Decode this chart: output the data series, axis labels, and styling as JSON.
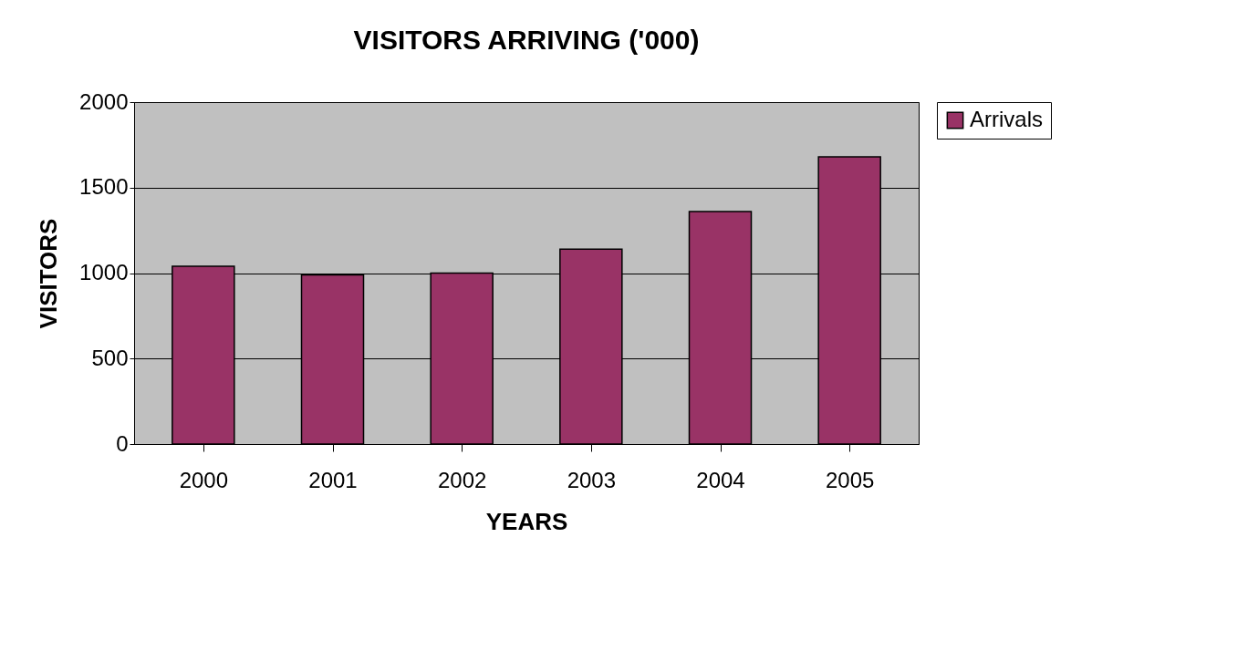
{
  "chart_data": {
    "type": "bar",
    "title": "VISITORS ARRIVING ('000)",
    "xlabel": "YEARS",
    "ylabel": "VISITORS",
    "categories": [
      "2000",
      "2001",
      "2002",
      "2003",
      "2004",
      "2005"
    ],
    "series": [
      {
        "name": "Arrivals",
        "color": "#993366",
        "values": [
          1040,
          990,
          1000,
          1140,
          1360,
          1680
        ]
      }
    ],
    "ylim": [
      0,
      2000
    ],
    "yticks": [
      0,
      500,
      1000,
      1500,
      2000
    ],
    "grid": "y",
    "legend": "right"
  }
}
